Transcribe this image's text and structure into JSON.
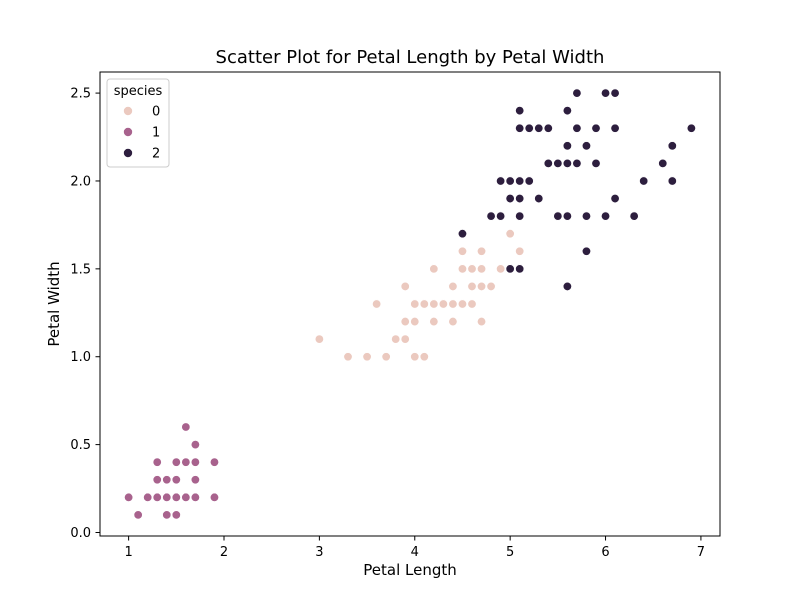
{
  "chart_data": {
    "type": "scatter",
    "title": "Scatter Plot for Petal Length by Petal Width",
    "xlabel": "Petal Length",
    "ylabel": "Petal Width",
    "xlim": [
      0.7,
      7.2
    ],
    "ylim": [
      -0.02,
      2.62
    ],
    "xticks": [
      1,
      2,
      3,
      4,
      5,
      6,
      7
    ],
    "yticks": [
      0.0,
      0.5,
      1.0,
      1.5,
      2.0,
      2.5
    ],
    "ytick_labels": [
      "0.0",
      "0.5",
      "1.0",
      "1.5",
      "2.0",
      "2.5"
    ],
    "grid": false,
    "legend": {
      "title": "species",
      "placement": "top-left"
    },
    "series": [
      {
        "name": "0",
        "color": "#ebc9bf",
        "points": [
          [
            4.7,
            1.4
          ],
          [
            4.5,
            1.5
          ],
          [
            4.9,
            1.5
          ],
          [
            4.0,
            1.3
          ],
          [
            4.6,
            1.5
          ],
          [
            4.5,
            1.3
          ],
          [
            4.7,
            1.6
          ],
          [
            3.3,
            1.0
          ],
          [
            4.6,
            1.3
          ],
          [
            3.9,
            1.4
          ],
          [
            3.5,
            1.0
          ],
          [
            4.2,
            1.5
          ],
          [
            4.0,
            1.0
          ],
          [
            4.7,
            1.4
          ],
          [
            3.6,
            1.3
          ],
          [
            4.4,
            1.4
          ],
          [
            4.5,
            1.5
          ],
          [
            4.1,
            1.0
          ],
          [
            4.5,
            1.5
          ],
          [
            3.9,
            1.1
          ],
          [
            4.8,
            1.8
          ],
          [
            4.0,
            1.3
          ],
          [
            4.9,
            1.5
          ],
          [
            4.7,
            1.2
          ],
          [
            4.3,
            1.3
          ],
          [
            4.4,
            1.4
          ],
          [
            4.8,
            1.4
          ],
          [
            5.0,
            1.7
          ],
          [
            4.5,
            1.5
          ],
          [
            3.5,
            1.0
          ],
          [
            3.8,
            1.1
          ],
          [
            3.7,
            1.0
          ],
          [
            3.9,
            1.2
          ],
          [
            5.1,
            1.6
          ],
          [
            4.5,
            1.5
          ],
          [
            4.5,
            1.6
          ],
          [
            4.7,
            1.5
          ],
          [
            4.4,
            1.3
          ],
          [
            4.1,
            1.3
          ],
          [
            4.0,
            1.3
          ],
          [
            4.4,
            1.2
          ],
          [
            4.6,
            1.4
          ],
          [
            4.0,
            1.2
          ],
          [
            3.3,
            1.0
          ],
          [
            4.2,
            1.3
          ],
          [
            4.2,
            1.2
          ],
          [
            4.2,
            1.3
          ],
          [
            4.3,
            1.3
          ],
          [
            3.0,
            1.1
          ],
          [
            4.1,
            1.3
          ]
        ]
      },
      {
        "name": "1",
        "color": "#a8628d",
        "points": [
          [
            1.4,
            0.2
          ],
          [
            1.3,
            0.2
          ],
          [
            1.5,
            0.2
          ],
          [
            1.7,
            0.4
          ],
          [
            1.4,
            0.3
          ],
          [
            1.5,
            0.1
          ],
          [
            1.6,
            0.2
          ],
          [
            1.1,
            0.1
          ],
          [
            1.2,
            0.2
          ],
          [
            1.3,
            0.4
          ],
          [
            1.7,
            0.3
          ],
          [
            1.5,
            0.3
          ],
          [
            1.0,
            0.2
          ],
          [
            1.7,
            0.5
          ],
          [
            1.9,
            0.2
          ],
          [
            1.6,
            0.4
          ],
          [
            1.6,
            0.6
          ],
          [
            1.4,
            0.1
          ],
          [
            1.5,
            0.4
          ],
          [
            1.9,
            0.4
          ],
          [
            1.3,
            0.3
          ],
          [
            1.6,
            0.2
          ],
          [
            1.7,
            0.2
          ],
          [
            1.5,
            0.2
          ]
        ]
      },
      {
        "name": "2",
        "color": "#2d1e3e",
        "points": [
          [
            6.0,
            2.5
          ],
          [
            5.1,
            1.9
          ],
          [
            5.9,
            2.1
          ],
          [
            5.6,
            1.8
          ],
          [
            5.8,
            2.2
          ],
          [
            6.6,
            2.1
          ],
          [
            4.5,
            1.7
          ],
          [
            6.3,
            1.8
          ],
          [
            5.8,
            1.8
          ],
          [
            6.1,
            2.5
          ],
          [
            5.1,
            2.0
          ],
          [
            5.3,
            1.9
          ],
          [
            5.5,
            2.1
          ],
          [
            5.0,
            2.0
          ],
          [
            5.1,
            2.4
          ],
          [
            5.3,
            2.3
          ],
          [
            5.5,
            1.8
          ],
          [
            6.7,
            2.2
          ],
          [
            6.9,
            2.3
          ],
          [
            5.0,
            1.5
          ],
          [
            5.7,
            2.3
          ],
          [
            4.9,
            2.0
          ],
          [
            6.7,
            2.0
          ],
          [
            4.9,
            1.8
          ],
          [
            5.7,
            2.1
          ],
          [
            6.0,
            1.8
          ],
          [
            4.8,
            1.8
          ],
          [
            4.9,
            1.8
          ],
          [
            5.6,
            2.1
          ],
          [
            5.8,
            1.6
          ],
          [
            6.1,
            1.9
          ],
          [
            6.4,
            2.0
          ],
          [
            5.6,
            2.2
          ],
          [
            5.1,
            1.5
          ],
          [
            5.6,
            1.4
          ],
          [
            6.1,
            2.3
          ],
          [
            5.6,
            2.4
          ],
          [
            5.5,
            1.8
          ],
          [
            4.8,
            1.8
          ],
          [
            5.4,
            2.1
          ],
          [
            5.6,
            2.4
          ],
          [
            5.1,
            2.3
          ],
          [
            5.9,
            2.3
          ],
          [
            5.7,
            2.5
          ],
          [
            5.2,
            2.3
          ],
          [
            5.0,
            1.9
          ],
          [
            5.2,
            2.0
          ],
          [
            5.4,
            2.3
          ],
          [
            5.1,
            1.8
          ]
        ]
      }
    ]
  }
}
